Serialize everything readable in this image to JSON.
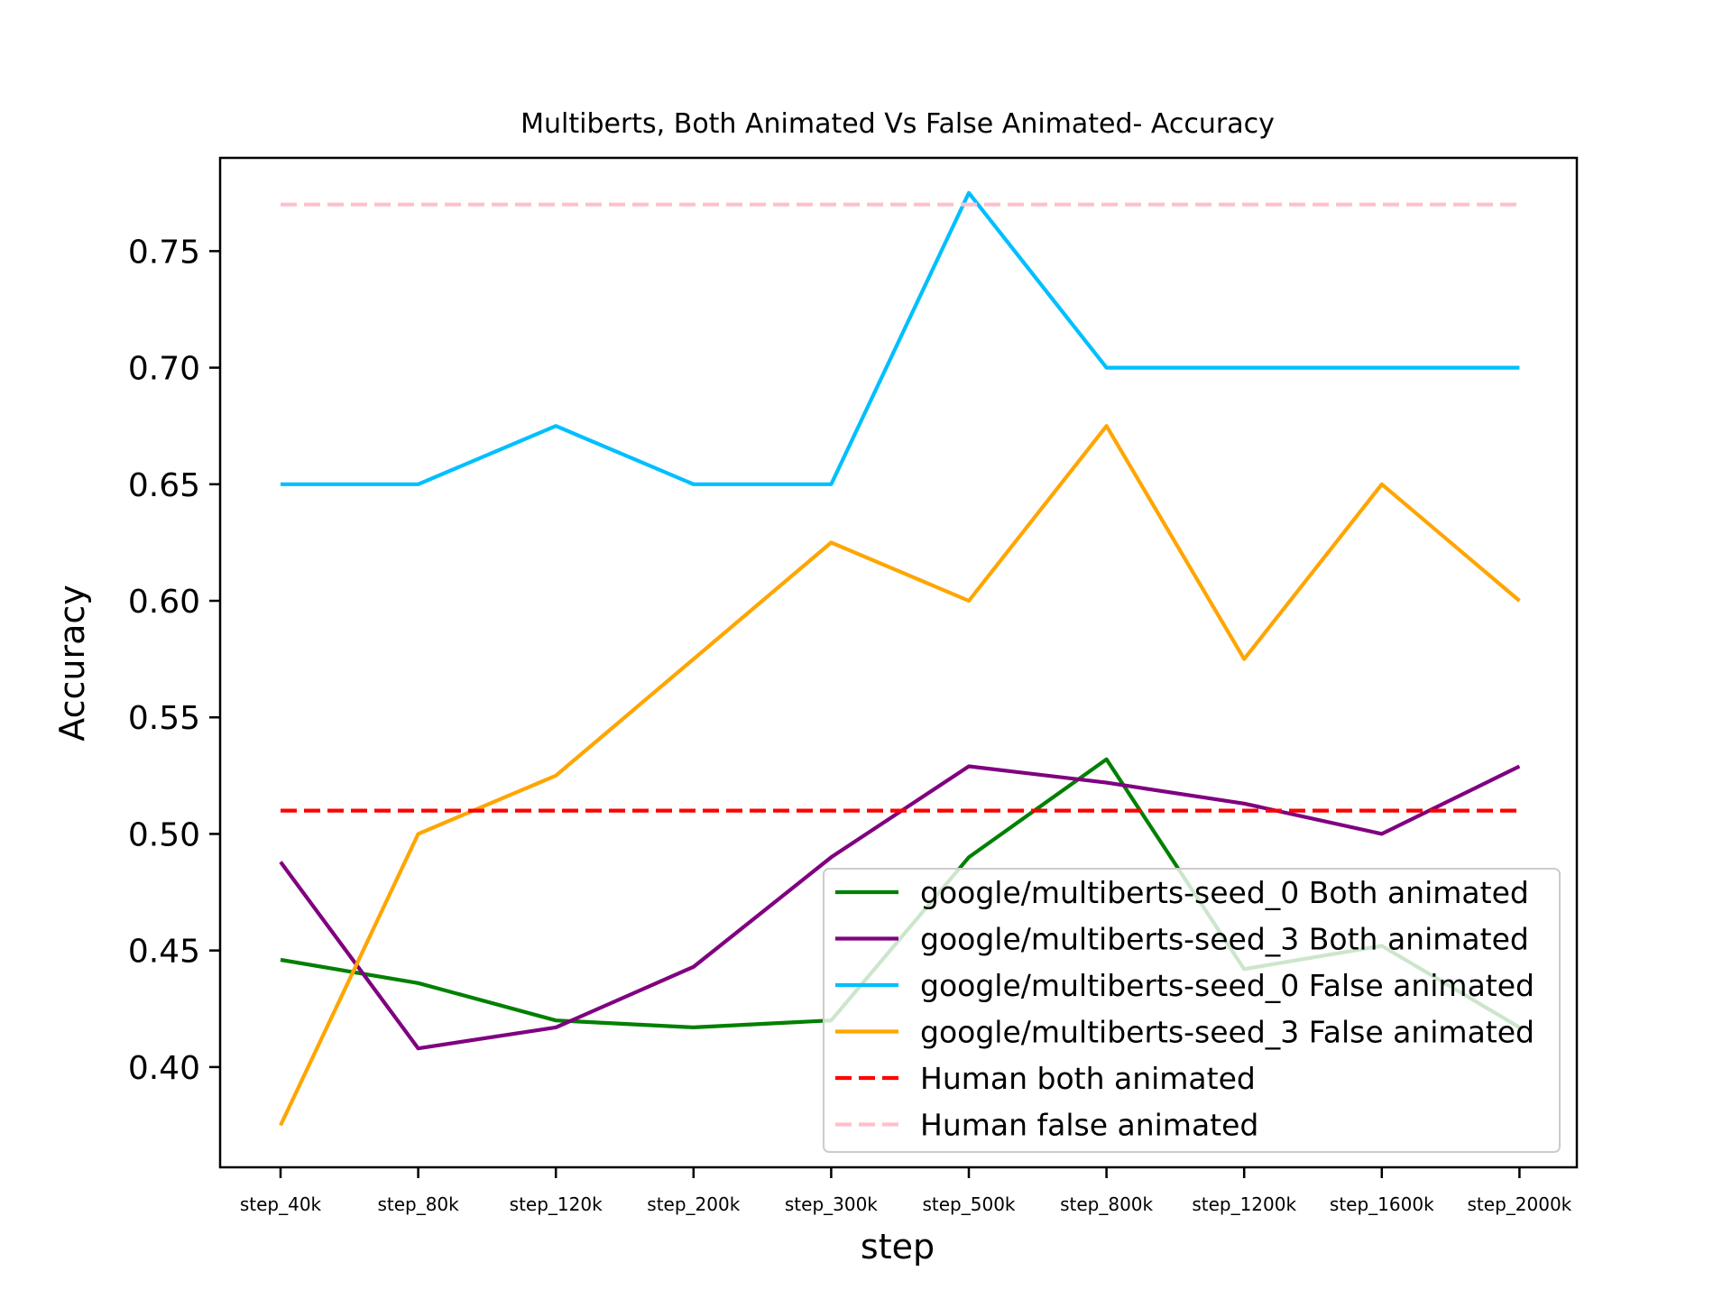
{
  "chart_data": {
    "type": "line",
    "title": "Multiberts, Both Animated Vs False Animated- Accuracy",
    "xlabel": "step",
    "ylabel": "Accuracy",
    "categories": [
      "step_40k",
      "step_80k",
      "step_120k",
      "step_200k",
      "step_300k",
      "step_500k",
      "step_800k",
      "step_1200k",
      "step_1600k",
      "step_2000k"
    ],
    "ylim": [
      0.357,
      0.79
    ],
    "yticks": [
      0.4,
      0.45,
      0.5,
      0.55,
      0.6,
      0.65,
      0.7,
      0.75
    ],
    "ytick_labels": [
      "0.40",
      "0.45",
      "0.50",
      "0.55",
      "0.60",
      "0.65",
      "0.70",
      "0.75"
    ],
    "grid": false,
    "legend_position": "lower-right",
    "series": [
      {
        "name": "google/multiberts-seed_0 Both animated",
        "color": "#008000",
        "dash": "solid",
        "values": [
          0.446,
          0.436,
          0.42,
          0.417,
          0.42,
          0.49,
          0.532,
          0.442,
          0.452,
          0.417
        ]
      },
      {
        "name": "google/multiberts-seed_3 Both animated",
        "color": "#800080",
        "dash": "solid",
        "values": [
          0.488,
          0.408,
          0.417,
          0.443,
          0.49,
          0.529,
          0.522,
          0.513,
          0.5,
          0.529
        ]
      },
      {
        "name": "google/multiberts-seed_0 False animated",
        "color": "#00bfff",
        "dash": "solid",
        "values": [
          0.65,
          0.65,
          0.675,
          0.65,
          0.65,
          0.775,
          0.7,
          0.7,
          0.7,
          0.7
        ]
      },
      {
        "name": "google/multiberts-seed_3 False animated",
        "color": "#ffa500",
        "dash": "solid",
        "values": [
          0.375,
          0.5,
          0.525,
          0.575,
          0.625,
          0.6,
          0.675,
          0.575,
          0.65,
          0.6
        ]
      },
      {
        "name": "Human both animated",
        "color": "#ff0000",
        "dash": "dashed",
        "values": [
          0.51,
          0.51,
          0.51,
          0.51,
          0.51,
          0.51,
          0.51,
          0.51,
          0.51,
          0.51
        ]
      },
      {
        "name": "Human false animated",
        "color": "#ffc0cb",
        "dash": "dashed",
        "values": [
          0.77,
          0.77,
          0.77,
          0.77,
          0.77,
          0.77,
          0.77,
          0.77,
          0.77,
          0.77
        ]
      }
    ]
  }
}
